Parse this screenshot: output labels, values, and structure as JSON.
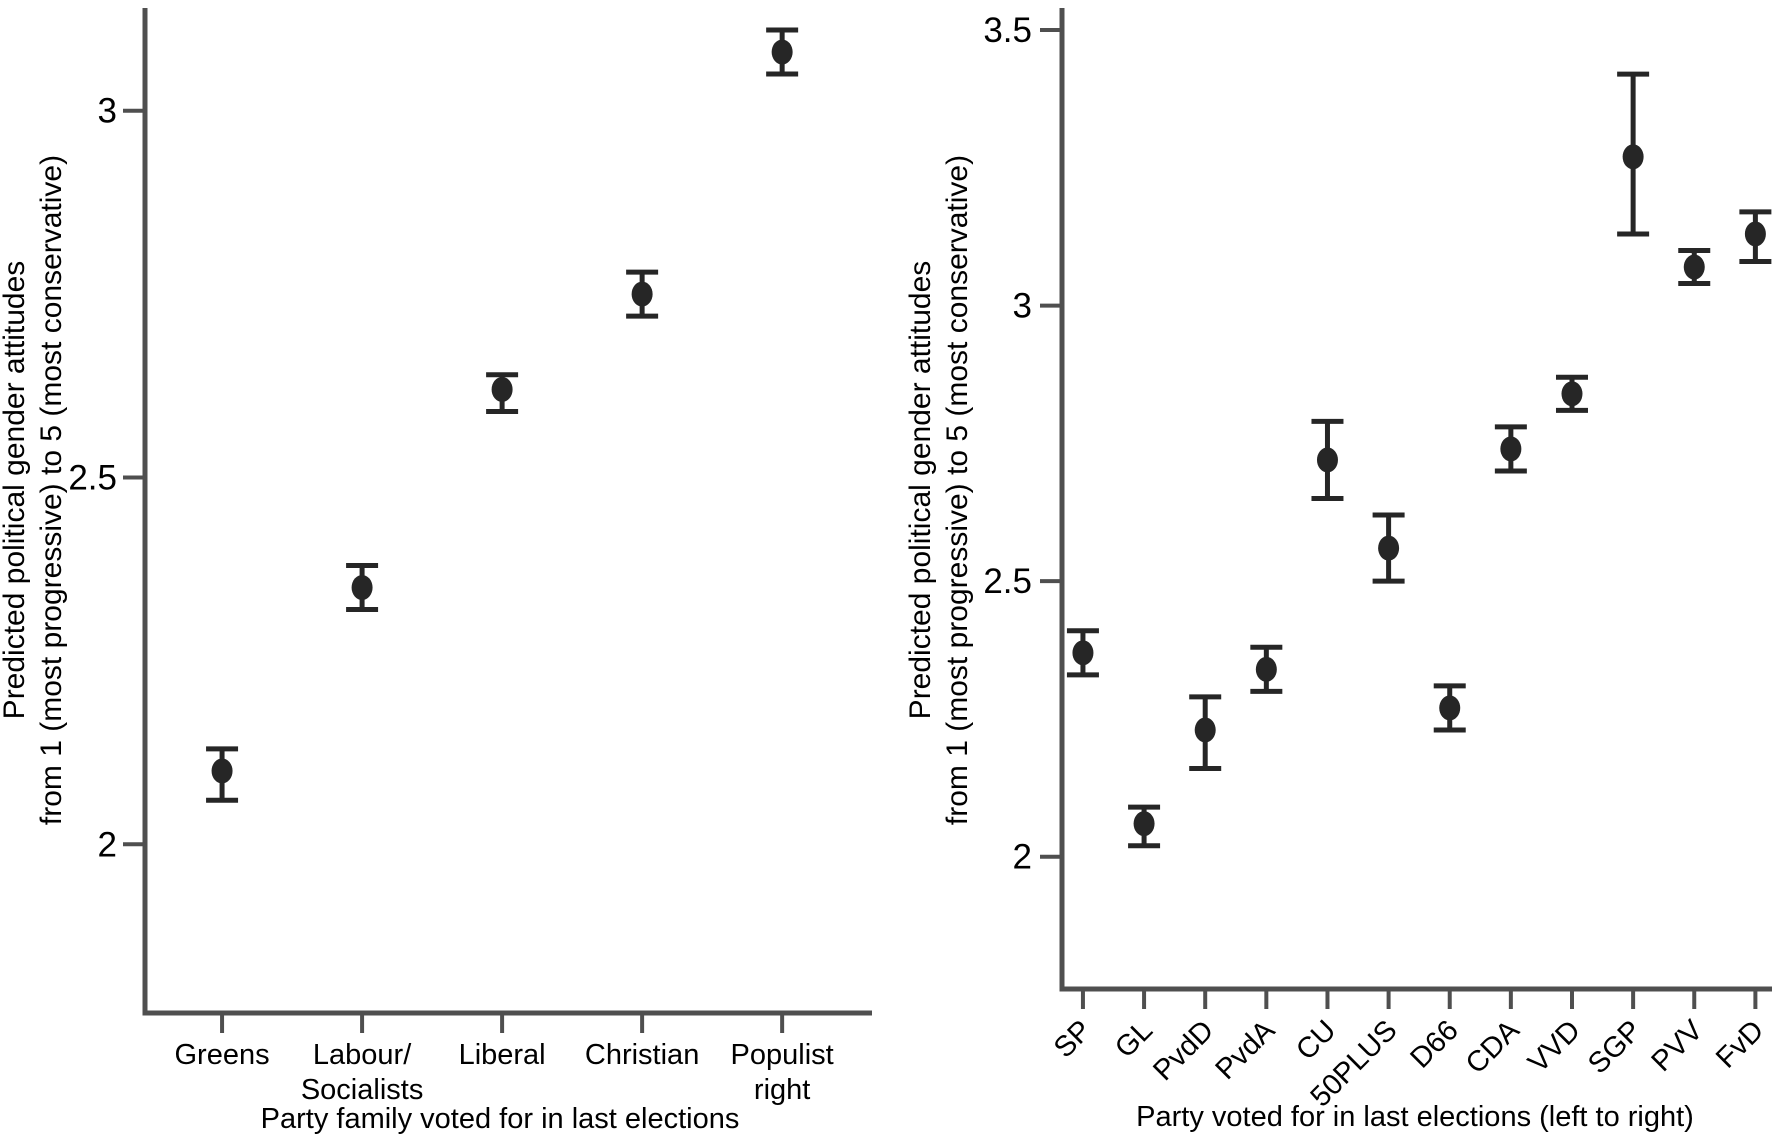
{
  "figure": {
    "background": "#ffffff",
    "colors": {
      "marker": "#262626",
      "error_bar": "#262626",
      "axis": "#4f4f4f",
      "text": "#000000"
    }
  },
  "chart_data": [
    {
      "id": "party_family",
      "type": "scatter",
      "title": "",
      "xlabel": "Party family voted for in last elections",
      "ylabel": [
        "Predicted political gender attitudes",
        "from 1 (most progressive) to 5 (most conservative)"
      ],
      "categories": [
        "Greens",
        "Labour/Socialists",
        "Liberal",
        "Christian",
        "Populist right"
      ],
      "category_label_lines": [
        [
          "Greens"
        ],
        [
          "Labour/",
          "Socialists"
        ],
        [
          "Liberal"
        ],
        [
          "Christian"
        ],
        [
          "Populist",
          "right"
        ]
      ],
      "values": [
        2.1,
        2.35,
        2.62,
        2.75,
        3.08
      ],
      "ci_low": [
        2.06,
        2.32,
        2.59,
        2.72,
        3.05
      ],
      "ci_high": [
        2.13,
        2.38,
        2.64,
        2.78,
        3.11
      ],
      "error_bars": "95% confidence interval",
      "marker": "filled-circle",
      "ylim": [
        1.77,
        3.14
      ],
      "yticks": [
        2,
        2.5,
        3
      ],
      "ytick_labels": [
        "2",
        "2.5",
        "3"
      ],
      "x_tick_rotation": 0,
      "grid": false,
      "legend": "none"
    },
    {
      "id": "party",
      "type": "scatter",
      "title": "",
      "xlabel": "Party voted for in last elections (left to right)",
      "ylabel": [
        "Predicted political gender attitudes",
        "from 1 (most progressive) to 5 (most conservative)"
      ],
      "categories": [
        "SP",
        "GL",
        "PvdD",
        "PvdA",
        "CU",
        "50PLUS",
        "D66",
        "CDA",
        "VVD",
        "SGP",
        "PVV",
        "FvD"
      ],
      "category_label_lines": [
        [
          "SP"
        ],
        [
          "GL"
        ],
        [
          "PvdD"
        ],
        [
          "PvdA"
        ],
        [
          "CU"
        ],
        [
          "50PLUS"
        ],
        [
          "D66"
        ],
        [
          "CDA"
        ],
        [
          "VVD"
        ],
        [
          "SGP"
        ],
        [
          "PVV"
        ],
        [
          "FvD"
        ]
      ],
      "values": [
        2.37,
        2.06,
        2.23,
        2.34,
        2.72,
        2.56,
        2.27,
        2.74,
        2.84,
        3.27,
        3.07,
        3.13
      ],
      "ci_low": [
        2.33,
        2.02,
        2.16,
        2.3,
        2.65,
        2.5,
        2.23,
        2.7,
        2.81,
        3.13,
        3.04,
        3.08
      ],
      "ci_high": [
        2.41,
        2.09,
        2.29,
        2.38,
        2.79,
        2.62,
        2.31,
        2.78,
        2.87,
        3.42,
        3.1,
        3.17
      ],
      "error_bars": "95% confidence interval",
      "marker": "filled-circle",
      "ylim": [
        1.76,
        3.54
      ],
      "yticks": [
        2,
        2.5,
        3,
        3.5
      ],
      "ytick_labels": [
        "2",
        "2.5",
        "3",
        "3.5"
      ],
      "x_tick_rotation": 45,
      "grid": false,
      "legend": "none"
    }
  ]
}
